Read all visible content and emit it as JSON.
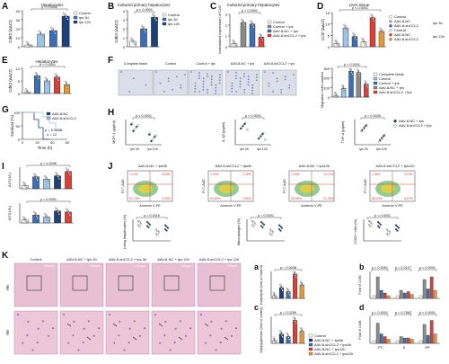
{
  "panels": [
    {
      "key": "A",
      "letter": "A",
      "title": "Hepatocytes",
      "ylabel": "Cd62 (ΔΔCt)",
      "ticks": [
        "0",
        "10",
        "20",
        "30",
        "40"
      ],
      "cats": [
        "0h",
        "3h",
        "6h",
        "12h"
      ],
      "legend": [
        "Control",
        "lps 3h",
        "lps 12h"
      ],
      "pvals": [
        "p < 0.0001",
        "p = 0.0001",
        "p < 0.0001"
      ]
    },
    {
      "key": "B",
      "letter": "B",
      "title": "Cultured primary hepatocytes",
      "ylabel": "Cd62 (ΔΔCt)",
      "ticks": [
        "0",
        "1",
        "2",
        "3",
        "4"
      ],
      "legend": [
        "Control",
        "lps 3h",
        "lps 12h"
      ],
      "pvals": [
        "p < 0.0001",
        "p < 0.0001"
      ]
    },
    {
      "key": "C",
      "letter": "C",
      "title": "Cultured primary hepatocytes",
      "ylabel": "Normalized expression of Ccl2",
      "ticks": [
        "0",
        "1",
        "2",
        "3"
      ],
      "legend": [
        "Control",
        "Control + lps",
        "AAV-8-NC + lps",
        "AAV-8-shCCL2 + lps"
      ],
      "pvals": [
        "p < 0.0001",
        "p < 0.0001"
      ]
    },
    {
      "key": "D",
      "letter": "D",
      "title": "Liver tissue",
      "ylabel": "Ccl2 (ΔΔCt)",
      "ticks": [
        "0",
        "5",
        "10",
        "15"
      ],
      "legend": [
        "Control",
        "AAV-8-NC",
        "AAV-8-shCCL2",
        "Control",
        "AAV-8-NC",
        "AAV-8-shCCL2"
      ],
      "groups": [
        "lps 3h",
        "lps 12h"
      ],
      "pvals": [
        "p < 0.0001",
        "p < 0.0001",
        "p = 0.0007",
        "p < 0.0001"
      ]
    },
    {
      "key": "E",
      "letter": "E",
      "title": "Hepatocytes",
      "ylabel": "Cd62 (ΔΔCt)",
      "ticks": [
        "0",
        "5",
        "10"
      ],
      "pvals": [
        "p < 0.0001",
        "p < 0.0001"
      ]
    },
    {
      "key": "F",
      "letter": "F",
      "images": [
        "Complete blank",
        "Control",
        "Control + lps",
        "AAV-8-NC + lps",
        "AAV-8-shCCL2 + lps"
      ],
      "ylabel": "Migration cells number",
      "ticks": [
        "0",
        "100",
        "200",
        "300"
      ],
      "legend": [
        "Complete blank",
        "Control",
        "Control + lps",
        "AAV-8-NC + lps",
        "AAV-8-shCCL2 + lps"
      ],
      "pvals": [
        "p < 0.0001",
        "p < 0.0001",
        "p < 0.0001"
      ]
    },
    {
      "key": "G",
      "letter": "G",
      "ylabel": "Survival (%)",
      "xlabel": "Time (h)",
      "ticks": [
        "0",
        "50",
        "100"
      ],
      "xticks": [
        "0",
        "20",
        "40",
        "60"
      ],
      "legend": [
        "AAV-8-NC",
        "AAV-8-shCCL2"
      ],
      "pvals": [
        "p = 0.0026",
        "n = 12"
      ]
    },
    {
      "key": "H",
      "letter": "H",
      "ylabels": [
        "MCP-1 (pg/ml)",
        "IL-1β (pg/ml)",
        "TNF-α (pg/ml)"
      ],
      "cats": [
        "lps 3h",
        "lps 12h"
      ],
      "legend": [
        "AAV-8-NC + lps",
        "AAV-8-shCCL2 + lps"
      ],
      "pvals": [
        "p < 0.0001",
        "p < 0.0001",
        "p < 0.0001",
        "p = 0.0435"
      ]
    },
    {
      "key": "I",
      "letter": "I",
      "ylabels": [
        "ALT(U/L)",
        "AST(U/L)"
      ],
      "pvals": [
        "p = 0.0036",
        "p = 0.0025",
        "p = 0.0001",
        "p < 0.0001",
        "p = 0.0001"
      ]
    },
    {
      "key": "J",
      "letter": "J",
      "flow_titles": [
        "AAV-8-NC + lps3h",
        "AAV-8-shCCL2 + lps3h",
        "AAV-8-NC + lps12h",
        "AAV-8-shCCL2 + lps12h"
      ],
      "xlabel": "Annexin V-PE",
      "ylabel": "PI 7-AAD",
      "quads": [
        [
          "1.14%",
          "3.64%",
          "91.18%",
          "1.09%"
        ],
        [
          "1.00%",
          "2.40%",
          "94.80%",
          "1.80%"
        ],
        [
          "1.25%",
          "10.11%",
          "63.28%",
          "21.45%"
        ],
        [
          "1.36%",
          "3.53%",
          "88.44%",
          "6.67%"
        ]
      ],
      "sub_ylabels": [
        "Living hepatocytes (%)",
        "Macrophages (%)",
        "CCK2+ cells (%)"
      ],
      "pvals": [
        "p = 0.0116",
        "p < 0.0001",
        "p = 0.0001",
        "p = 0.0001",
        "p < 0.0001"
      ]
    },
    {
      "key": "K",
      "letter": "K",
      "columns": [
        "Control",
        "AAV-8-NC + lps 3h",
        "AAV-8-shCCL2 + lps 3h",
        "AAV-8-NC + lps 12h",
        "AAV-8-shCCL2 + lps 12h"
      ],
      "rowlabel": "HE",
      "scale": "100 μm"
    },
    {
      "key": "a",
      "letter": "a",
      "ylabel": "Karyolysis (fold of control)",
      "pvals": [
        "p = 0.0038",
        "p = 0.0078"
      ]
    },
    {
      "key": "b",
      "letter": "b",
      "ylabel": "Fold of CON",
      "pvals": [
        "p = 0.0001",
        "p = 0.0127",
        "p < 0.0001"
      ]
    },
    {
      "key": "c",
      "letter": "c",
      "ylabel": "Karyopyknosis (fold of control)",
      "pvals": [
        "p = 0.0259",
        "p = 0.0001"
      ]
    },
    {
      "key": "d",
      "letter": "d",
      "ylabel": "Fold of CON",
      "cats": [
        "PC",
        "S",
        "PP"
      ],
      "pvals": [
        "p < 0.0001",
        "p = 0.7863",
        "p < 0.0001"
      ]
    },
    {
      "key": "legend4",
      "legend": [
        "Control",
        "AAV-8-NC + lps3h",
        "AAV-8-shCCL2 + lps3h",
        "AAV-8-NC + lps12h",
        "AAV-8-shCCL2 + lps12h"
      ]
    }
  ],
  "colors": {
    "blue": "#3c6eb4",
    "darkblue": "#1f3f7a",
    "lightblue": "#9ec3e6",
    "red": "#d9403a",
    "orange": "#e59a3a",
    "gray": "#8a8a8a",
    "white": "#ffffff",
    "pink": "#e8a0c8",
    "hePink": "#e9bfd4"
  }
}
